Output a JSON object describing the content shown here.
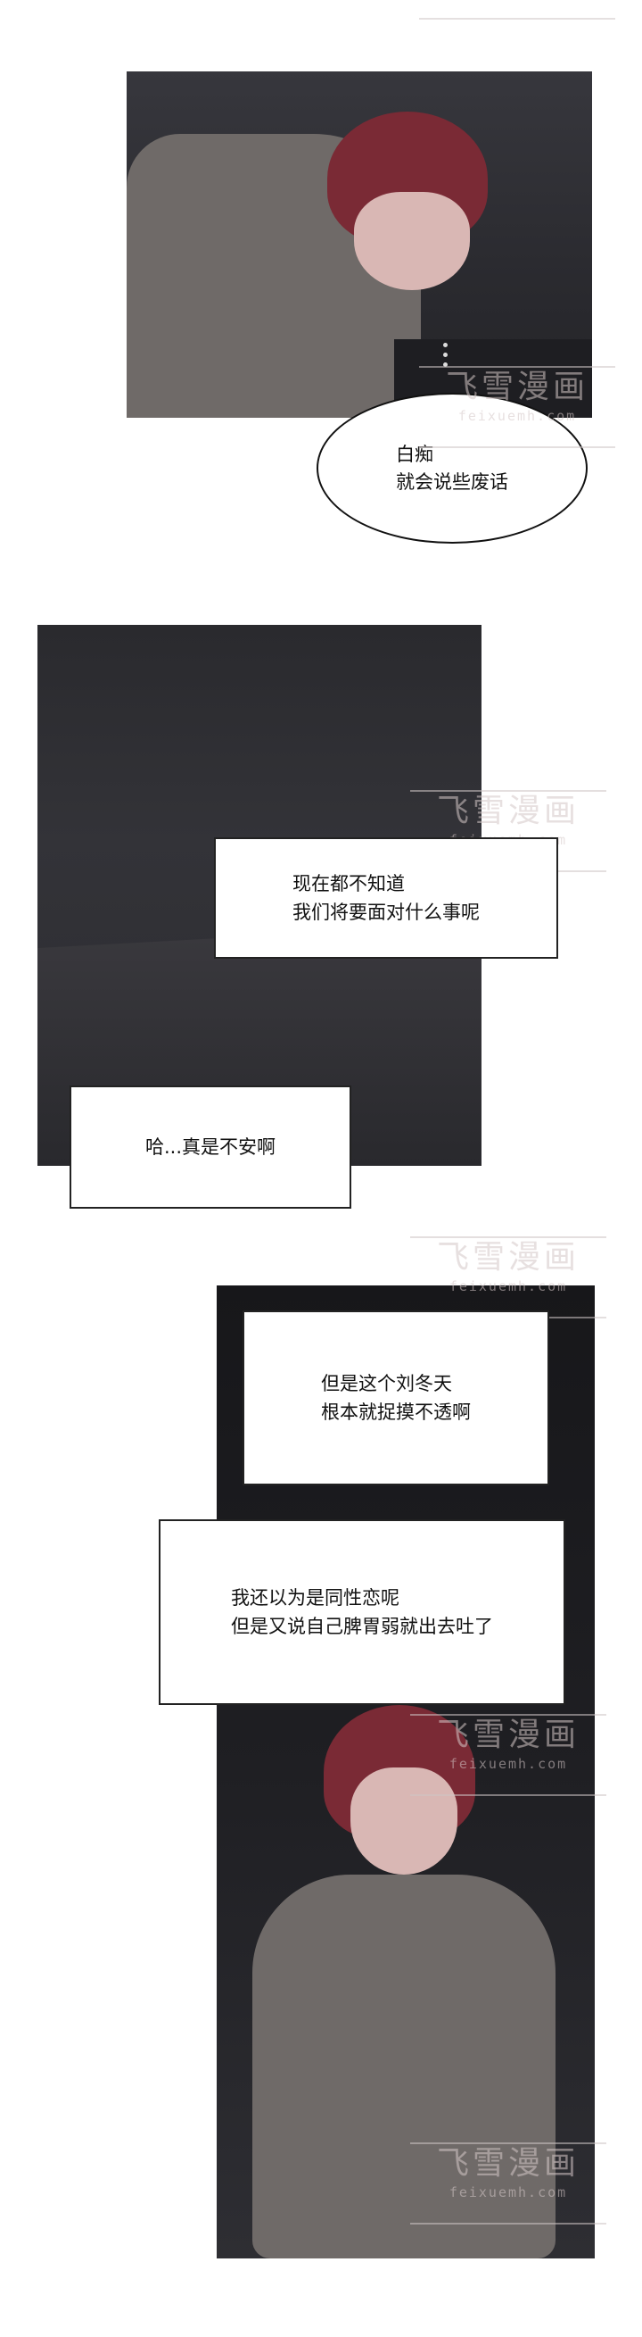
{
  "speech": {
    "lines": [
      "白痴",
      "就会说些废话"
    ]
  },
  "narration": [
    {
      "lines": [
        "现在都不知道",
        "我们将要面对什么事呢"
      ]
    },
    {
      "lines": [
        "哈...真是不安啊"
      ]
    },
    {
      "lines": [
        "但是这个刘冬天",
        "根本就捉摸不透啊"
      ]
    },
    {
      "lines": [
        "我还以为是同性恋呢",
        "但是又说自己脾胃弱就出去吐了"
      ]
    }
  ],
  "watermark": {
    "logo": "飞雪漫画",
    "url": "feixuemh.com"
  }
}
